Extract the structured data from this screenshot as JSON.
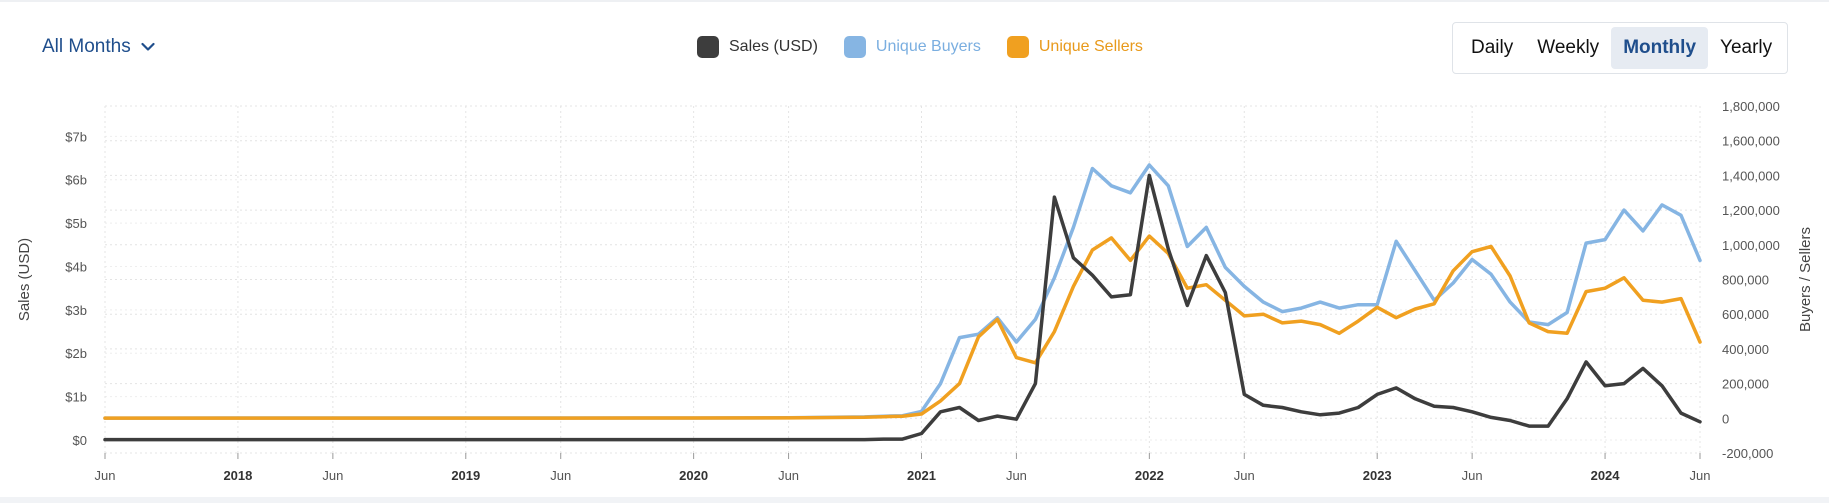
{
  "range_select": {
    "label": "All Months"
  },
  "period_tabs": [
    {
      "label": "Daily",
      "active": false
    },
    {
      "label": "Weekly",
      "active": false
    },
    {
      "label": "Monthly",
      "active": true
    },
    {
      "label": "Yearly",
      "active": false
    }
  ],
  "colors": {
    "sales": "#3d3d3d",
    "buyers": "#86b5e3",
    "sellers": "#f0a020",
    "grid": "#e4e4e4",
    "axis_text": "#555555",
    "accent": "#1f4e8c"
  },
  "chart_data": {
    "type": "line",
    "x_ticks": [
      {
        "date": "2017-06",
        "label": "Jun",
        "bold": false
      },
      {
        "date": "2018-01",
        "label": "2018",
        "bold": true
      },
      {
        "date": "2018-06",
        "label": "Jun",
        "bold": false
      },
      {
        "date": "2019-01",
        "label": "2019",
        "bold": true
      },
      {
        "date": "2019-06",
        "label": "Jun",
        "bold": false
      },
      {
        "date": "2020-01",
        "label": "2020",
        "bold": true
      },
      {
        "date": "2020-06",
        "label": "Jun",
        "bold": false
      },
      {
        "date": "2021-01",
        "label": "2021",
        "bold": true
      },
      {
        "date": "2021-06",
        "label": "Jun",
        "bold": false
      },
      {
        "date": "2022-01",
        "label": "2022",
        "bold": true
      },
      {
        "date": "2022-06",
        "label": "Jun",
        "bold": false
      },
      {
        "date": "2023-01",
        "label": "2023",
        "bold": true
      },
      {
        "date": "2023-06",
        "label": "Jun",
        "bold": false
      },
      {
        "date": "2024-01",
        "label": "2024",
        "bold": true
      },
      {
        "date": "2024-06",
        "label": "Jun",
        "bold": false
      }
    ],
    "y_left": {
      "label": "Sales (USD)",
      "range": [
        -0.3,
        7.7
      ],
      "ticks": [
        {
          "value": 0,
          "label": "$0"
        },
        {
          "value": 1,
          "label": "$1b"
        },
        {
          "value": 2,
          "label": "$2b"
        },
        {
          "value": 3,
          "label": "$3b"
        },
        {
          "value": 4,
          "label": "$4b"
        },
        {
          "value": 5,
          "label": "$5b"
        },
        {
          "value": 6,
          "label": "$6b"
        },
        {
          "value": 7,
          "label": "$7b"
        }
      ]
    },
    "y_right": {
      "label": "Buyers / Sellers",
      "range": [
        -200000,
        1800000
      ],
      "ticks": [
        {
          "value": -200000,
          "label": "-200,000"
        },
        {
          "value": 0,
          "label": "0"
        },
        {
          "value": 200000,
          "label": "200,000"
        },
        {
          "value": 400000,
          "label": "400,000"
        },
        {
          "value": 600000,
          "label": "600,000"
        },
        {
          "value": 800000,
          "label": "800,000"
        },
        {
          "value": 1000000,
          "label": "1,000,000"
        },
        {
          "value": 1200000,
          "label": "1,200,000"
        },
        {
          "value": 1400000,
          "label": "1,400,000"
        },
        {
          "value": 1600000,
          "label": "1,600,000"
        },
        {
          "value": 1800000,
          "label": "1,800,000"
        }
      ]
    },
    "legend": [
      "Sales (USD)",
      "Unique Buyers",
      "Unique Sellers"
    ],
    "series": [
      {
        "name": "Sales (USD)",
        "axis": "left",
        "unit": "billion USD",
        "points": [
          [
            "2017-06",
            0.01
          ],
          [
            "2018-01",
            0.01
          ],
          [
            "2018-06",
            0.01
          ],
          [
            "2019-01",
            0.01
          ],
          [
            "2019-06",
            0.01
          ],
          [
            "2020-01",
            0.01
          ],
          [
            "2020-06",
            0.01
          ],
          [
            "2020-10",
            0.01
          ],
          [
            "2020-11",
            0.02
          ],
          [
            "2020-12",
            0.02
          ],
          [
            "2021-01",
            0.15
          ],
          [
            "2021-02",
            0.65
          ],
          [
            "2021-03",
            0.75
          ],
          [
            "2021-04",
            0.45
          ],
          [
            "2021-05",
            0.55
          ],
          [
            "2021-06",
            0.48
          ],
          [
            "2021-07",
            1.3
          ],
          [
            "2021-08",
            5.6
          ],
          [
            "2021-09",
            4.2
          ],
          [
            "2021-10",
            3.8
          ],
          [
            "2021-11",
            3.3
          ],
          [
            "2021-12",
            3.35
          ],
          [
            "2022-01",
            6.1
          ],
          [
            "2022-02",
            4.4
          ],
          [
            "2022-03",
            3.1
          ],
          [
            "2022-04",
            4.25
          ],
          [
            "2022-05",
            3.4
          ],
          [
            "2022-06",
            1.05
          ],
          [
            "2022-07",
            0.8
          ],
          [
            "2022-08",
            0.75
          ],
          [
            "2022-09",
            0.65
          ],
          [
            "2022-10",
            0.58
          ],
          [
            "2022-11",
            0.62
          ],
          [
            "2022-12",
            0.75
          ],
          [
            "2023-01",
            1.05
          ],
          [
            "2023-02",
            1.2
          ],
          [
            "2023-03",
            0.95
          ],
          [
            "2023-04",
            0.78
          ],
          [
            "2023-05",
            0.75
          ],
          [
            "2023-06",
            0.65
          ],
          [
            "2023-07",
            0.52
          ],
          [
            "2023-08",
            0.45
          ],
          [
            "2023-09",
            0.32
          ],
          [
            "2023-10",
            0.32
          ],
          [
            "2023-11",
            0.95
          ],
          [
            "2023-12",
            1.8
          ],
          [
            "2024-01",
            1.25
          ],
          [
            "2024-02",
            1.3
          ],
          [
            "2024-03",
            1.65
          ],
          [
            "2024-04",
            1.25
          ],
          [
            "2024-05",
            0.62
          ],
          [
            "2024-06",
            0.42
          ]
        ]
      },
      {
        "name": "Unique Buyers",
        "axis": "right",
        "points": [
          [
            "2017-06",
            1000
          ],
          [
            "2018-01",
            2000
          ],
          [
            "2018-06",
            2000
          ],
          [
            "2019-01",
            2000
          ],
          [
            "2019-06",
            2000
          ],
          [
            "2020-01",
            2000
          ],
          [
            "2020-06",
            3000
          ],
          [
            "2020-10",
            8000
          ],
          [
            "2020-11",
            12000
          ],
          [
            "2020-12",
            15000
          ],
          [
            "2021-01",
            40000
          ],
          [
            "2021-02",
            200000
          ],
          [
            "2021-03",
            465000
          ],
          [
            "2021-04",
            485000
          ],
          [
            "2021-05",
            580000
          ],
          [
            "2021-06",
            440000
          ],
          [
            "2021-07",
            570000
          ],
          [
            "2021-08",
            810000
          ],
          [
            "2021-09",
            1100000
          ],
          [
            "2021-10",
            1440000
          ],
          [
            "2021-11",
            1340000
          ],
          [
            "2021-12",
            1300000
          ],
          [
            "2022-01",
            1460000
          ],
          [
            "2022-02",
            1340000
          ],
          [
            "2022-03",
            990000
          ],
          [
            "2022-04",
            1100000
          ],
          [
            "2022-05",
            870000
          ],
          [
            "2022-06",
            760000
          ],
          [
            "2022-07",
            670000
          ],
          [
            "2022-08",
            615000
          ],
          [
            "2022-09",
            635000
          ],
          [
            "2022-10",
            670000
          ],
          [
            "2022-11",
            635000
          ],
          [
            "2022-12",
            655000
          ],
          [
            "2023-01",
            655000
          ],
          [
            "2023-02",
            1020000
          ],
          [
            "2023-03",
            850000
          ],
          [
            "2023-04",
            680000
          ],
          [
            "2023-05",
            780000
          ],
          [
            "2023-06",
            915000
          ],
          [
            "2023-07",
            830000
          ],
          [
            "2023-08",
            670000
          ],
          [
            "2023-09",
            555000
          ],
          [
            "2023-10",
            540000
          ],
          [
            "2023-11",
            610000
          ],
          [
            "2023-12",
            1010000
          ],
          [
            "2024-01",
            1030000
          ],
          [
            "2024-02",
            1200000
          ],
          [
            "2024-03",
            1080000
          ],
          [
            "2024-04",
            1230000
          ],
          [
            "2024-05",
            1170000
          ],
          [
            "2024-06",
            910000
          ]
        ]
      },
      {
        "name": "Unique Sellers",
        "axis": "right",
        "points": [
          [
            "2017-06",
            1000
          ],
          [
            "2018-01",
            1000
          ],
          [
            "2018-06",
            1000
          ],
          [
            "2019-01",
            1000
          ],
          [
            "2019-06",
            1000
          ],
          [
            "2020-01",
            1500
          ],
          [
            "2020-06",
            2500
          ],
          [
            "2020-10",
            6000
          ],
          [
            "2020-11",
            9000
          ],
          [
            "2020-12",
            12000
          ],
          [
            "2021-01",
            25000
          ],
          [
            "2021-02",
            100000
          ],
          [
            "2021-03",
            200000
          ],
          [
            "2021-04",
            470000
          ],
          [
            "2021-05",
            570000
          ],
          [
            "2021-06",
            350000
          ],
          [
            "2021-07",
            320000
          ],
          [
            "2021-08",
            500000
          ],
          [
            "2021-09",
            760000
          ],
          [
            "2021-10",
            970000
          ],
          [
            "2021-11",
            1040000
          ],
          [
            "2021-12",
            910000
          ],
          [
            "2022-01",
            1050000
          ],
          [
            "2022-02",
            950000
          ],
          [
            "2022-03",
            750000
          ],
          [
            "2022-04",
            770000
          ],
          [
            "2022-05",
            680000
          ],
          [
            "2022-06",
            590000
          ],
          [
            "2022-07",
            600000
          ],
          [
            "2022-08",
            550000
          ],
          [
            "2022-09",
            560000
          ],
          [
            "2022-10",
            540000
          ],
          [
            "2022-11",
            490000
          ],
          [
            "2022-12",
            560000
          ],
          [
            "2023-01",
            640000
          ],
          [
            "2023-02",
            580000
          ],
          [
            "2023-03",
            630000
          ],
          [
            "2023-04",
            660000
          ],
          [
            "2023-05",
            850000
          ],
          [
            "2023-06",
            960000
          ],
          [
            "2023-07",
            990000
          ],
          [
            "2023-08",
            820000
          ],
          [
            "2023-09",
            550000
          ],
          [
            "2023-10",
            500000
          ],
          [
            "2023-11",
            490000
          ],
          [
            "2023-12",
            730000
          ],
          [
            "2024-01",
            750000
          ],
          [
            "2024-02",
            810000
          ],
          [
            "2024-03",
            680000
          ],
          [
            "2024-04",
            670000
          ],
          [
            "2024-05",
            690000
          ],
          [
            "2024-06",
            440000
          ]
        ]
      }
    ],
    "grid": true
  }
}
